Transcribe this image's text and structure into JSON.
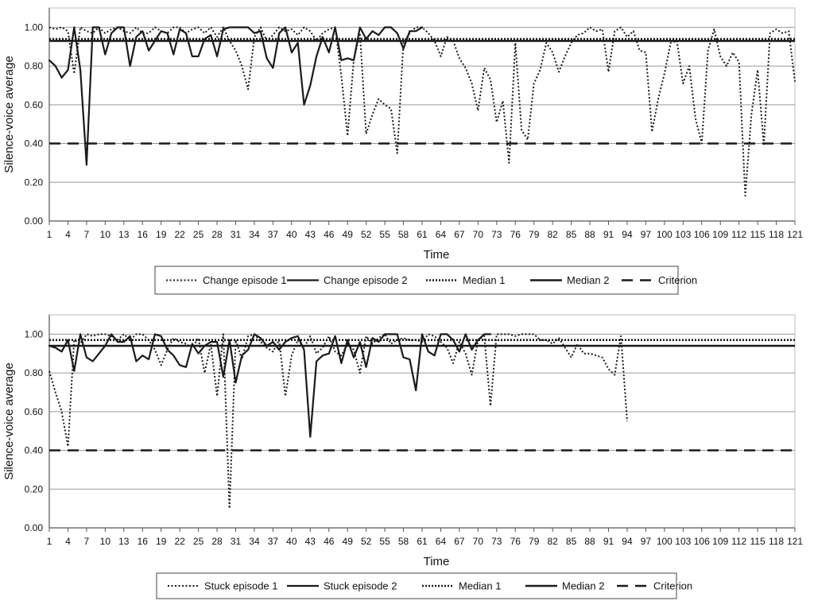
{
  "chart_data": [
    {
      "type": "line",
      "xlabel": "Time",
      "ylabel": "Silence-voice average",
      "ylim": [
        0,
        1.1
      ],
      "yticks": [
        "0.00",
        "0.20",
        "0.40",
        "0.60",
        "0.80",
        "1.00"
      ],
      "xticks": [
        "1",
        "4",
        "7",
        "10",
        "13",
        "16",
        "19",
        "22",
        "25",
        "28",
        "31",
        "34",
        "37",
        "40",
        "43",
        "46",
        "49",
        "52",
        "55",
        "58",
        "61",
        "64",
        "67",
        "70",
        "73",
        "76",
        "79",
        "82",
        "85",
        "88",
        "91",
        "94",
        "97",
        "100",
        "103",
        "106",
        "109",
        "112",
        "115",
        "118",
        "121"
      ],
      "xlim": [
        1,
        121
      ],
      "grid": "horizontal",
      "legend_position": "bottom",
      "series": [
        {
          "name": "Change episode 1",
          "style": "dotted",
          "x": [
            1,
            2,
            3,
            4,
            5,
            6,
            7,
            8,
            9,
            10,
            11,
            12,
            13,
            14,
            15,
            16,
            17,
            18,
            19,
            20,
            21,
            22,
            23,
            24,
            25,
            26,
            27,
            28,
            29,
            30,
            31,
            32,
            33,
            34,
            35,
            36,
            37,
            38,
            39,
            40,
            41,
            42,
            43,
            44,
            45,
            46,
            47,
            48,
            49,
            50,
            51,
            52,
            53,
            54,
            55,
            56,
            57,
            58,
            59,
            60,
            61,
            62,
            63,
            64,
            65,
            66,
            67,
            68,
            69,
            70,
            71,
            72,
            73,
            74,
            75,
            76,
            77,
            78,
            79,
            80,
            81,
            82,
            83,
            84,
            85,
            86,
            87,
            88,
            89,
            90,
            91,
            92,
            93,
            94,
            95,
            96,
            97,
            98,
            99,
            100,
            101,
            102,
            103,
            104,
            105,
            106,
            107,
            108,
            109,
            110,
            111,
            112,
            113,
            114,
            115,
            116,
            117,
            118,
            119,
            120,
            121
          ],
          "y": [
            1.0,
            0.99,
            1.0,
            0.98,
            0.76,
            1.0,
            0.98,
            0.97,
            1.0,
            0.97,
            0.99,
            1.0,
            0.98,
            0.97,
            1.0,
            0.97,
            0.97,
            1.0,
            0.98,
            0.97,
            1.0,
            1.0,
            0.97,
            0.99,
            1.0,
            0.97,
            1.0,
            0.95,
            1.0,
            0.93,
            0.88,
            0.8,
            0.68,
            0.95,
            1.0,
            0.93,
            0.96,
            1.0,
            0.98,
            0.99,
            0.96,
            1.0,
            0.98,
            0.93,
            0.97,
            0.99,
            1.0,
            0.75,
            0.44,
            0.83,
            0.97,
            0.45,
            0.55,
            0.63,
            0.6,
            0.58,
            0.35,
            0.92,
            0.97,
            1.0,
            1.0,
            0.97,
            0.93,
            0.85,
            0.95,
            0.93,
            0.84,
            0.79,
            0.71,
            0.57,
            0.79,
            0.73,
            0.51,
            0.62,
            0.3,
            0.92,
            0.47,
            0.42,
            0.71,
            0.78,
            0.92,
            0.87,
            0.77,
            0.85,
            0.92,
            0.96,
            0.97,
            1.0,
            0.98,
            0.99,
            0.77,
            0.98,
            1.0,
            0.95,
            0.98,
            0.88,
            0.87,
            0.46,
            0.63,
            0.76,
            0.92,
            0.93,
            0.71,
            0.8,
            0.53,
            0.4,
            0.88,
            0.99,
            0.85,
            0.8,
            0.87,
            0.82,
            0.13,
            0.55,
            0.78,
            0.39,
            0.97,
            0.99,
            0.97,
            0.98,
            0.72
          ]
        },
        {
          "name": "Change episode 2",
          "style": "solid",
          "x": [
            1,
            2,
            3,
            4,
            5,
            6,
            7,
            8,
            9,
            10,
            11,
            12,
            13,
            14,
            15,
            16,
            17,
            18,
            19,
            20,
            21,
            22,
            23,
            24,
            25,
            26,
            27,
            28,
            29,
            30,
            31,
            32,
            33,
            34,
            35,
            36,
            37,
            38,
            39,
            40,
            41,
            42,
            43,
            44,
            45,
            46,
            47,
            48,
            49,
            50,
            51,
            52,
            53,
            54,
            55,
            56,
            57,
            58,
            59,
            60,
            61
          ],
          "y": [
            0.83,
            0.8,
            0.74,
            0.78,
            1.0,
            0.78,
            0.29,
            1.0,
            1.0,
            0.86,
            0.97,
            1.0,
            1.0,
            0.8,
            0.95,
            0.98,
            0.88,
            0.93,
            0.98,
            0.97,
            0.86,
            0.99,
            0.97,
            0.85,
            0.85,
            0.94,
            0.96,
            0.85,
            0.99,
            1.0,
            1.0,
            1.0,
            1.0,
            0.97,
            0.98,
            0.84,
            0.79,
            0.97,
            1.0,
            0.87,
            0.92,
            0.6,
            0.7,
            0.85,
            0.95,
            0.87,
            1.0,
            0.83,
            0.84,
            0.83,
            1.0,
            0.94,
            0.98,
            0.96,
            1.0,
            1.0,
            0.97,
            0.89,
            0.98,
            0.98,
            1.0
          ]
        },
        {
          "name": "Median 1",
          "style": "dotted-thick",
          "x": [
            1,
            121
          ],
          "y": [
            0.94,
            0.94
          ]
        },
        {
          "name": "Median 2",
          "style": "solid-thick",
          "x": [
            1,
            121
          ],
          "y": [
            0.93,
            0.93
          ]
        },
        {
          "name": "Criterion",
          "style": "dashed",
          "x": [
            1,
            121
          ],
          "y": [
            0.4,
            0.4
          ]
        }
      ]
    },
    {
      "type": "line",
      "xlabel": "Time",
      "ylabel": "Silence-voice average",
      "ylim": [
        0,
        1.1
      ],
      "yticks": [
        "0.00",
        "0.20",
        "0.40",
        "0.60",
        "0.80",
        "1.00"
      ],
      "xticks": [
        "1",
        "4",
        "7",
        "10",
        "13",
        "16",
        "19",
        "22",
        "25",
        "28",
        "31",
        "34",
        "37",
        "40",
        "43",
        "46",
        "49",
        "52",
        "55",
        "58",
        "61",
        "64",
        "67",
        "70",
        "73",
        "76",
        "79",
        "82",
        "85",
        "88",
        "91",
        "94",
        "97",
        "100",
        "103",
        "106",
        "109",
        "112",
        "115",
        "118",
        "121"
      ],
      "xlim": [
        1,
        121
      ],
      "grid": "horizontal",
      "legend_position": "bottom",
      "series": [
        {
          "name": "Stuck episode 1",
          "style": "dotted",
          "x": [
            1,
            2,
            3,
            4,
            5,
            6,
            7,
            8,
            9,
            10,
            11,
            12,
            13,
            14,
            15,
            16,
            17,
            18,
            19,
            20,
            21,
            22,
            23,
            24,
            25,
            26,
            27,
            28,
            29,
            30,
            31,
            32,
            33,
            34,
            35,
            36,
            37,
            38,
            39,
            40,
            41,
            42,
            43,
            44,
            45,
            46,
            47,
            48,
            49,
            50,
            51,
            52,
            53,
            54,
            55,
            56,
            57,
            58,
            59,
            60,
            61,
            62,
            63,
            64,
            65,
            66,
            67,
            68,
            69,
            70,
            71,
            72,
            73,
            74,
            75,
            76,
            77,
            78,
            79,
            80,
            81,
            82,
            83,
            84,
            85,
            86,
            87,
            88,
            89,
            90,
            91,
            92,
            93,
            94
          ],
          "y": [
            0.81,
            0.7,
            0.6,
            0.42,
            0.97,
            0.95,
            1.0,
            0.99,
            1.0,
            1.0,
            0.99,
            0.97,
            1.0,
            0.97,
            1.0,
            1.0,
            0.97,
            0.92,
            0.84,
            0.92,
            0.98,
            0.96,
            0.95,
            0.93,
            0.98,
            0.8,
            0.95,
            0.68,
            1.0,
            0.1,
            0.97,
            0.87,
            0.99,
            1.0,
            0.96,
            0.93,
            0.91,
            0.97,
            0.68,
            0.89,
            0.97,
            0.93,
            0.99,
            0.9,
            0.93,
            0.99,
            0.91,
            0.89,
            0.95,
            0.92,
            0.8,
            0.99,
            0.95,
            0.98,
            1.0,
            0.95,
            0.97,
            0.98,
            0.97,
            0.97,
            0.96,
            1.0,
            0.99,
            0.96,
            0.93,
            0.85,
            0.96,
            0.9,
            0.79,
            0.97,
            0.99,
            0.63,
            1.0,
            1.0,
            1.0,
            0.99,
            1.0,
            1.0,
            1.0,
            0.97,
            0.97,
            0.95,
            0.98,
            0.93,
            0.88,
            0.95,
            0.9,
            0.9,
            0.89,
            0.88,
            0.82,
            0.79,
            0.99,
            0.55
          ]
        },
        {
          "name": "Stuck episode 2",
          "style": "solid",
          "x": [
            1,
            2,
            3,
            4,
            5,
            6,
            7,
            8,
            9,
            10,
            11,
            12,
            13,
            14,
            15,
            16,
            17,
            18,
            19,
            20,
            21,
            22,
            23,
            24,
            25,
            26,
            27,
            28,
            29,
            30,
            31,
            32,
            33,
            34,
            35,
            36,
            37,
            38,
            39,
            40,
            41,
            42,
            43,
            44,
            45,
            46,
            47,
            48,
            49,
            50,
            51,
            52,
            53,
            54,
            55,
            56,
            57,
            58,
            59,
            60,
            61,
            62,
            63,
            64,
            65,
            66,
            67,
            68,
            69,
            70,
            71,
            72
          ],
          "y": [
            0.94,
            0.93,
            0.91,
            0.97,
            0.81,
            1.0,
            0.88,
            0.86,
            0.9,
            0.94,
            1.0,
            0.96,
            0.96,
            0.99,
            0.86,
            0.89,
            0.87,
            1.0,
            0.99,
            0.92,
            0.89,
            0.84,
            0.83,
            0.95,
            0.9,
            0.94,
            0.96,
            0.96,
            0.78,
            0.97,
            0.75,
            0.89,
            0.92,
            1.0,
            0.98,
            0.94,
            0.96,
            0.92,
            0.96,
            0.98,
            0.99,
            0.92,
            0.47,
            0.86,
            0.89,
            0.9,
            0.99,
            0.85,
            0.97,
            0.88,
            0.96,
            0.83,
            0.98,
            0.96,
            1.0,
            1.0,
            1.0,
            0.88,
            0.87,
            0.71,
            1.0,
            0.91,
            0.89,
            1.0,
            1.0,
            0.97,
            0.91,
            1.0,
            0.92,
            0.97,
            1.0,
            1.0
          ]
        },
        {
          "name": "Median 1",
          "style": "dotted-thick",
          "x": [
            1,
            121
          ],
          "y": [
            0.97,
            0.97
          ]
        },
        {
          "name": "Median 2",
          "style": "solid-thick",
          "x": [
            1,
            121
          ],
          "y": [
            0.94,
            0.94
          ]
        },
        {
          "name": "Criterion",
          "style": "dashed",
          "x": [
            1,
            121
          ],
          "y": [
            0.4,
            0.4
          ]
        }
      ]
    }
  ]
}
